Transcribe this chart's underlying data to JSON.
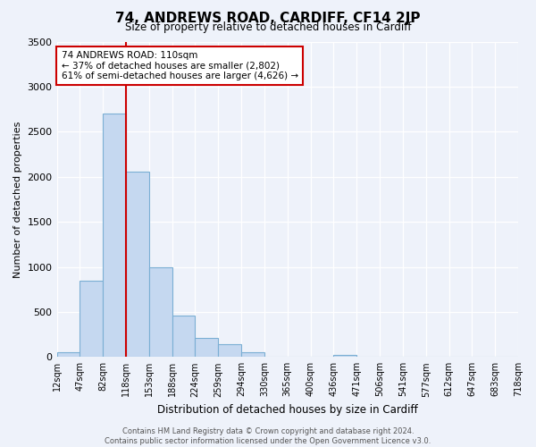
{
  "title": "74, ANDREWS ROAD, CARDIFF, CF14 2JP",
  "subtitle": "Size of property relative to detached houses in Cardiff",
  "xlabel": "Distribution of detached houses by size in Cardiff",
  "ylabel": "Number of detached properties",
  "bin_labels": [
    "12sqm",
    "47sqm",
    "82sqm",
    "118sqm",
    "153sqm",
    "188sqm",
    "224sqm",
    "259sqm",
    "294sqm",
    "330sqm",
    "365sqm",
    "400sqm",
    "436sqm",
    "471sqm",
    "506sqm",
    "541sqm",
    "577sqm",
    "612sqm",
    "647sqm",
    "683sqm",
    "718sqm"
  ],
  "bar_heights": [
    55,
    850,
    2700,
    2060,
    1000,
    455,
    210,
    145,
    55,
    0,
    0,
    0,
    20,
    0,
    0,
    0,
    0,
    0,
    0,
    0
  ],
  "bar_color": "#c5d8f0",
  "bar_edge_color": "#7bafd4",
  "property_line_x": 3,
  "property_line_color": "#cc0000",
  "ylim": [
    0,
    3500
  ],
  "yticks": [
    0,
    500,
    1000,
    1500,
    2000,
    2500,
    3000,
    3500
  ],
  "annotation_title": "74 ANDREWS ROAD: 110sqm",
  "annotation_line1": "← 37% of detached houses are smaller (2,802)",
  "annotation_line2": "61% of semi-detached houses are larger (4,626) →",
  "annotation_box_color": "#ffffff",
  "annotation_box_edge": "#cc0000",
  "footer_line1": "Contains HM Land Registry data © Crown copyright and database right 2024.",
  "footer_line2": "Contains public sector information licensed under the Open Government Licence v3.0.",
  "background_color": "#eef2fa"
}
